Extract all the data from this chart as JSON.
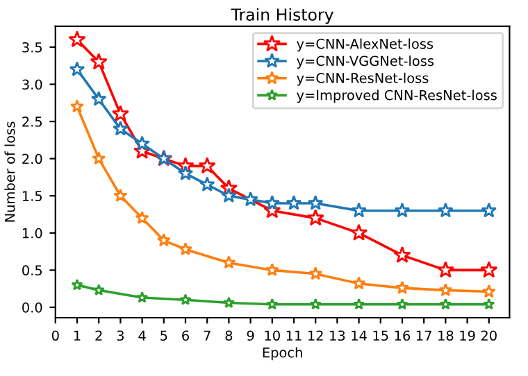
{
  "chart_data": {
    "type": "line",
    "title": "Train History",
    "xlabel": "Epoch",
    "ylabel": "Number of loss",
    "xlim": [
      0,
      20.95
    ],
    "xticks": [
      0,
      1,
      2,
      3,
      4,
      5,
      6,
      7,
      8,
      9,
      10,
      11,
      12,
      13,
      14,
      15,
      16,
      17,
      18,
      19,
      20
    ],
    "ylim": [
      -0.14,
      3.78
    ],
    "yticks": [
      {
        "value": 0,
        "label": "0.0"
      },
      {
        "value": 0.5,
        "label": "0.5"
      },
      {
        "value": 1,
        "label": "1.0"
      },
      {
        "value": 1.5,
        "label": "1.5"
      },
      {
        "value": 2,
        "label": "2.0"
      },
      {
        "value": 2.5,
        "label": "2.5"
      },
      {
        "value": 3,
        "label": "3.0"
      },
      {
        "value": 3.5,
        "label": "3.5"
      }
    ],
    "grid": false,
    "legend": "top right",
    "marker": "star",
    "line_style": "solid",
    "series": [
      {
        "name": "y=CNN-AlexNet-loss",
        "color": "#ff0000",
        "x": [
          1,
          2,
          3,
          4,
          5,
          6,
          7,
          8,
          10,
          12,
          14,
          16,
          18,
          20
        ],
        "values": [
          3.6,
          3.3,
          2.6,
          2.1,
          2.0,
          1.9,
          1.9,
          1.6,
          1.3,
          1.2,
          1.0,
          0.7,
          0.5,
          0.5
        ]
      },
      {
        "name": "y=CNN-VGGNet-loss",
        "color": "#1f77b4",
        "x": [
          1,
          2,
          3,
          4,
          5,
          6,
          7,
          8,
          9,
          10,
          11,
          12,
          14,
          16,
          18,
          20
        ],
        "values": [
          3.2,
          2.8,
          2.4,
          2.2,
          2.0,
          1.8,
          1.65,
          1.5,
          1.45,
          1.4,
          1.4,
          1.4,
          1.3,
          1.3,
          1.3,
          1.3
        ]
      },
      {
        "name": "y=CNN-ResNet-loss",
        "color": "#ff7f0e",
        "x": [
          1,
          2,
          3,
          4,
          5,
          6,
          8,
          10,
          12,
          14,
          16,
          18,
          20
        ],
        "values": [
          2.7,
          2.0,
          1.5,
          1.2,
          0.9,
          0.78,
          0.6,
          0.5,
          0.45,
          0.32,
          0.26,
          0.23,
          0.21
        ]
      },
      {
        "name": "y=Improved CNN-ResNet-loss",
        "color": "#2ca02c",
        "x": [
          1,
          2,
          4,
          6,
          8,
          10,
          12,
          14,
          16,
          18,
          20
        ],
        "values": [
          0.3,
          0.23,
          0.13,
          0.1,
          0.06,
          0.04,
          0.04,
          0.04,
          0.04,
          0.04,
          0.04
        ]
      }
    ]
  }
}
